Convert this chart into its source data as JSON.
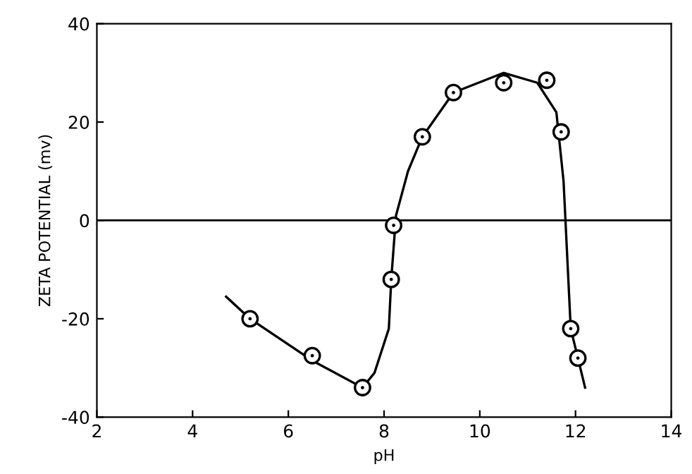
{
  "chart_data": {
    "type": "scatter",
    "xlabel": "pH",
    "ylabel": "ZETA POTENTIAL (mv)",
    "xlim": [
      2,
      14
    ],
    "ylim": [
      -40,
      40
    ],
    "xticks": [
      2,
      4,
      6,
      8,
      10,
      12,
      14
    ],
    "yticks": [
      -40,
      -20,
      0,
      20,
      40
    ],
    "grid": false,
    "marker": "circle",
    "ref_lines": [
      {
        "axis": "y",
        "value": 0,
        "label": null,
        "color": "#000000",
        "line_style": "solid"
      }
    ],
    "series": [
      {
        "color": "#000000",
        "x": [
          5.2,
          6.5,
          7.55,
          8.15,
          8.2,
          8.8,
          9.45,
          10.5,
          11.4,
          11.7,
          11.9,
          12.05
        ],
        "values": [
          -20,
          -27.5,
          -34,
          -12,
          -1,
          17,
          26,
          28,
          28.5,
          18,
          -22,
          -28
        ]
      },
      {
        "type": "line",
        "color": "#000000",
        "marker": "none",
        "line_style": "solid",
        "x": [
          4.7,
          5.2,
          6.5,
          7.55,
          7.8,
          8.1,
          8.15,
          8.25,
          8.5,
          8.8,
          9.45,
          10.5,
          11.2,
          11.6,
          11.75,
          11.9,
          12.2
        ],
        "values": [
          -15.5,
          -20,
          -28.5,
          -34,
          -31,
          -22,
          -12,
          1,
          10,
          17,
          26,
          30,
          28,
          22,
          8,
          -22,
          -34
        ]
      }
    ]
  }
}
